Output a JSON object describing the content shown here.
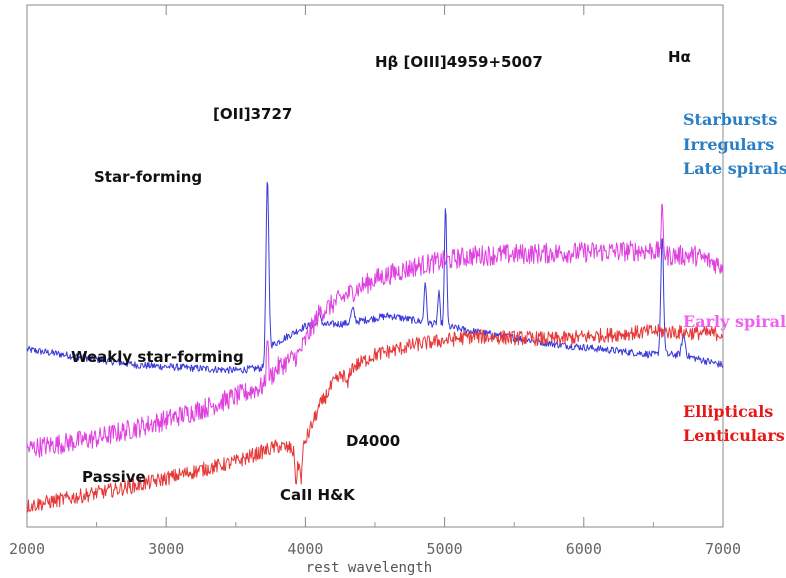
{
  "chart_data": {
    "type": "line",
    "title": "",
    "xlabel": "rest wavelength",
    "ylabel": "",
    "xlim": [
      2000,
      7000
    ],
    "xticks": [
      2000,
      3000,
      4000,
      5000,
      6000,
      7000
    ],
    "ylim": [
      0,
      1
    ],
    "grid": false,
    "series": [
      {
        "key": "sf",
        "color": "#3a3ad8",
        "noise": 0.007,
        "baseline": [
          [
            2000,
            0.34
          ],
          [
            2800,
            0.31
          ],
          [
            3500,
            0.3
          ],
          [
            3700,
            0.305
          ],
          [
            3740,
            0.345
          ],
          [
            4000,
            0.385
          ],
          [
            4300,
            0.39
          ],
          [
            4600,
            0.405
          ],
          [
            4900,
            0.39
          ],
          [
            5200,
            0.375
          ],
          [
            5800,
            0.35
          ],
          [
            6500,
            0.33
          ],
          [
            6700,
            0.33
          ],
          [
            7000,
            0.31
          ]
        ],
        "peaks": [
          [
            3727,
            0.33,
            10
          ],
          [
            4102,
            0.02,
            12
          ],
          [
            4340,
            0.025,
            12
          ],
          [
            4861,
            0.08,
            8
          ],
          [
            4959,
            0.06,
            8
          ],
          [
            5007,
            0.23,
            8
          ],
          [
            6563,
            0.23,
            10
          ],
          [
            6717,
            0.04,
            12
          ]
        ]
      },
      {
        "key": "wsf",
        "color": "#e040e0",
        "noise": 0.02,
        "baseline": [
          [
            2000,
            0.15
          ],
          [
            2500,
            0.17
          ],
          [
            3000,
            0.205
          ],
          [
            3300,
            0.23
          ],
          [
            3600,
            0.26
          ],
          [
            3700,
            0.27
          ],
          [
            3800,
            0.305
          ],
          [
            3950,
            0.33
          ],
          [
            4100,
            0.41
          ],
          [
            4300,
            0.445
          ],
          [
            4500,
            0.475
          ],
          [
            4800,
            0.5
          ],
          [
            5200,
            0.52
          ],
          [
            5800,
            0.525
          ],
          [
            6500,
            0.53
          ],
          [
            6600,
            0.52
          ],
          [
            6800,
            0.52
          ],
          [
            7000,
            0.5
          ]
        ],
        "peaks": [
          [
            3727,
            0.1,
            6
          ],
          [
            6563,
            0.08,
            8
          ]
        ]
      },
      {
        "key": "pas",
        "color": "#e63838",
        "noise": 0.014,
        "baseline": [
          [
            2000,
            0.04
          ],
          [
            2500,
            0.065
          ],
          [
            2800,
            0.08
          ],
          [
            3100,
            0.1
          ],
          [
            3500,
            0.125
          ],
          [
            3800,
            0.155
          ],
          [
            3900,
            0.15
          ],
          [
            3950,
            0.13
          ],
          [
            4000,
            0.165
          ],
          [
            4100,
            0.23
          ],
          [
            4200,
            0.275
          ],
          [
            4300,
            0.3
          ],
          [
            4500,
            0.33
          ],
          [
            4800,
            0.35
          ],
          [
            5200,
            0.365
          ],
          [
            5800,
            0.36
          ],
          [
            6500,
            0.375
          ],
          [
            7000,
            0.37
          ]
        ],
        "peaks": [
          [
            3934,
            -0.05,
            8
          ],
          [
            3969,
            -0.05,
            8
          ],
          [
            4300,
            -0.03,
            12
          ]
        ]
      }
    ],
    "annotations": [
      {
        "key": "oii",
        "text": "[OII]3727"
      },
      {
        "key": "hb_oiii",
        "text": "Hβ [OIII]4959+5007"
      },
      {
        "key": "ha",
        "text": "Hα"
      },
      {
        "key": "sf_label",
        "text": "Star-forming"
      },
      {
        "key": "wsf_label",
        "text": "Weakly star-forming"
      },
      {
        "key": "d4000",
        "text": "D4000"
      },
      {
        "key": "passive",
        "text": "Passive"
      },
      {
        "key": "caii",
        "text": "CaII H&K"
      }
    ],
    "legend": {
      "placement": "right",
      "groups": [
        {
          "color": "#2a7fc4",
          "lines": [
            "Starbursts",
            "Irregulars",
            "Late spirals"
          ]
        },
        {
          "color": "#f060f0",
          "lines": [
            "Early spirals"
          ]
        },
        {
          "color": "#e81818",
          "lines": [
            "Ellipticals",
            "Lenticulars"
          ]
        }
      ]
    }
  }
}
